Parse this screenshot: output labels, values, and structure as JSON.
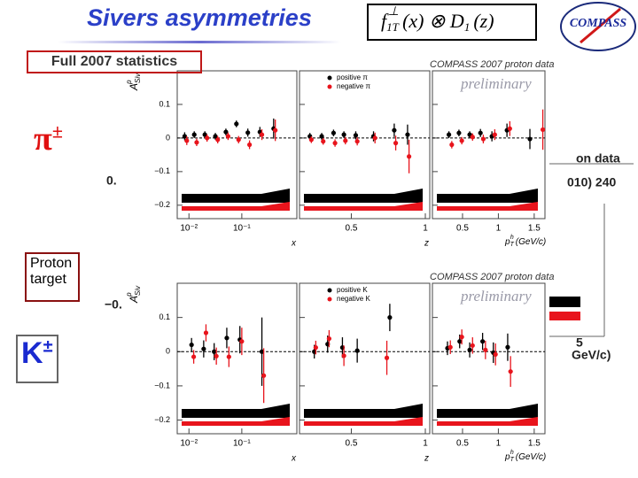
{
  "title": "Sivers asymmetries",
  "formula": {
    "f": "f",
    "sub1": "1T",
    "sup": "⊥",
    "mid": "(x) ⊗ D",
    "sub2": "1",
    "end": "(z)"
  },
  "logo": "COMPASS",
  "labels": {
    "statistics": "Full 2007 statistics",
    "pion": {
      "main": "π",
      "sup": "±"
    },
    "target": "Proton target",
    "kaon": {
      "main": "K",
      "sup": "±"
    }
  },
  "fragments": [
    "0.",
    "−0.",
    "on data",
    "010) 240",
    "5",
    "GeV/c)"
  ],
  "chart_data": [
    {
      "type": "scatter",
      "xscale": "log",
      "ylabel": {
        "main": "A",
        "sub": "Siv",
        "sup": "p"
      },
      "xlabel": "x",
      "xlim": [
        0.006,
        1.1
      ],
      "xticks": [
        {
          "value": 0.01,
          "label": "10⁻²"
        },
        {
          "value": 0.1,
          "label": "10⁻¹"
        }
      ],
      "ylim": [
        -0.24,
        0.2
      ],
      "yticks": [
        {
          "value": 0.1,
          "label": "0.1"
        },
        0,
        {
          "value": -0.1,
          "label": "−0.1"
        },
        {
          "value": -0.2,
          "label": "−0.2"
        }
      ],
      "series": [
        {
          "color": "#000000",
          "x": [
            0.0083,
            0.0126,
            0.02,
            0.0316,
            0.05,
            0.079,
            0.13,
            0.22,
            0.4
          ],
          "values": [
            0.005,
            0.01,
            0.01,
            0.005,
            0.018,
            0.042,
            0.016,
            0.018,
            0.028
          ],
          "errors": [
            0.012,
            0.01,
            0.01,
            0.01,
            0.01,
            0.01,
            0.012,
            0.015,
            0.03
          ]
        },
        {
          "color": "#e8141c",
          "x": [
            0.0091,
            0.014,
            0.022,
            0.035,
            0.055,
            0.087,
            0.14,
            0.24,
            0.43
          ],
          "values": [
            -0.008,
            -0.013,
            0,
            -0.005,
            0.005,
            -0.005,
            -0.02,
            0.01,
            0.023
          ],
          "errors": [
            0.013,
            0.011,
            0.011,
            0.011,
            0.011,
            0.011,
            0.013,
            0.016,
            0.032
          ]
        }
      ]
    },
    {
      "type": "scatter",
      "xlabel": "z",
      "xlim": [
        0.15,
        1.03
      ],
      "xticks": [
        0.5,
        1
      ],
      "series": [
        {
          "name": "positive π",
          "color": "#000000",
          "x": [
            0.22,
            0.3,
            0.38,
            0.45,
            0.53,
            0.65,
            0.79,
            0.88
          ],
          "values": [
            0.005,
            0.005,
            0.015,
            0.01,
            0.008,
            0.005,
            0.023,
            0.01
          ],
          "errors": [
            0.01,
            0.01,
            0.01,
            0.01,
            0.012,
            0.015,
            0.02,
            0.03
          ]
        },
        {
          "name": "negative π",
          "color": "#e8141c",
          "x": [
            0.23,
            0.31,
            0.39,
            0.46,
            0.54,
            0.66,
            0.8,
            0.89
          ],
          "values": [
            -0.005,
            -0.01,
            -0.015,
            -0.008,
            -0.01,
            0,
            -0.015,
            -0.055
          ],
          "errors": [
            0.01,
            0.01,
            0.011,
            0.011,
            0.012,
            0.016,
            0.022,
            0.05
          ]
        }
      ]
    },
    {
      "type": "scatter",
      "xlabel": {
        "main": "p",
        "sub": "T",
        "sup": "h",
        "unit": "(GeV/c)"
      },
      "xlim": [
        0.08,
        1.65
      ],
      "xticks": [
        0.5,
        1,
        1.5
      ],
      "annotations": [
        "COMPASS 2007 proton data",
        "preliminary"
      ],
      "series": [
        {
          "color": "#000000",
          "x": [
            0.31,
            0.45,
            0.6,
            0.75,
            0.91,
            1.12,
            1.44
          ],
          "values": [
            0.01,
            0.015,
            0.01,
            0.015,
            0.005,
            0.023,
            -0.003
          ],
          "errors": [
            0.01,
            0.01,
            0.01,
            0.012,
            0.015,
            0.02,
            0.03
          ]
        },
        {
          "color": "#e8141c",
          "x": [
            0.35,
            0.49,
            0.64,
            0.79,
            0.95,
            1.16,
            1.62
          ],
          "values": [
            -0.02,
            -0.008,
            0.003,
            -0.003,
            0.01,
            0.028,
            0.025
          ],
          "errors": [
            0.011,
            0.011,
            0.011,
            0.013,
            0.016,
            0.022,
            0.06
          ]
        }
      ]
    },
    {
      "type": "scatter",
      "xscale": "log",
      "ylabel": {
        "main": "A",
        "sub": "Siv",
        "sup": "p"
      },
      "xlabel": "x",
      "xlim": [
        0.006,
        1.1
      ],
      "xticks": [
        {
          "value": 0.01,
          "label": "10⁻²"
        },
        {
          "value": 0.1,
          "label": "10⁻¹"
        }
      ],
      "ylim": [
        -0.24,
        0.2
      ],
      "yticks": [
        {
          "value": 0.1,
          "label": "0.1"
        },
        0,
        {
          "value": -0.1,
          "label": "−0.1"
        },
        {
          "value": -0.2,
          "label": "−0.2"
        }
      ],
      "series": [
        {
          "color": "#000000",
          "x": [
            0.0112,
            0.019,
            0.03,
            0.052,
            0.092,
            0.24
          ],
          "values": [
            0.02,
            0.008,
            0,
            0.04,
            0.035,
            0
          ],
          "errors": [
            0.02,
            0.025,
            0.025,
            0.03,
            0.04,
            0.1
          ]
        },
        {
          "color": "#e8141c",
          "x": [
            0.0123,
            0.021,
            0.033,
            0.057,
            0.1,
            0.26
          ],
          "values": [
            -0.015,
            0.055,
            -0.013,
            -0.015,
            0.03,
            -0.07
          ],
          "errors": [
            0.02,
            0.025,
            0.025,
            0.03,
            0.04,
            0.08
          ]
        }
      ]
    },
    {
      "type": "scatter",
      "xlabel": "z",
      "xlim": [
        0.15,
        1.03
      ],
      "xticks": [
        0.5,
        1
      ],
      "series": [
        {
          "name": "positive K",
          "color": "#000000",
          "x": [
            0.25,
            0.34,
            0.44,
            0.54,
            0.76
          ],
          "values": [
            0,
            0.022,
            0.012,
            0.003,
            0.1
          ],
          "errors": [
            0.02,
            0.025,
            0.03,
            0.035,
            0.04
          ]
        },
        {
          "name": "negative K",
          "color": "#e8141c",
          "x": [
            0.26,
            0.35,
            0.45,
            0.74
          ],
          "values": [
            0.012,
            0.038,
            -0.012,
            -0.018
          ],
          "errors": [
            0.02,
            0.025,
            0.03,
            0.05
          ]
        }
      ]
    },
    {
      "type": "scatter",
      "xlabel": {
        "main": "p",
        "sub": "T",
        "sup": "h",
        "unit": "(GeV/c)"
      },
      "xlim": [
        0.08,
        1.65
      ],
      "xticks": [
        0.5,
        1,
        1.5
      ],
      "annotations": [
        "COMPASS 2007 proton data",
        "preliminary"
      ],
      "series": [
        {
          "color": "#000000",
          "x": [
            0.29,
            0.46,
            0.6,
            0.78,
            0.93,
            1.13
          ],
          "values": [
            0.01,
            0.03,
            0.005,
            0.03,
            -0.003,
            0.013
          ],
          "errors": [
            0.02,
            0.02,
            0.022,
            0.025,
            0.03,
            0.04
          ]
        },
        {
          "color": "#e8141c",
          "x": [
            0.33,
            0.49,
            0.64,
            0.82,
            0.96,
            1.17
          ],
          "values": [
            0.013,
            0.043,
            0.018,
            0.005,
            -0.008,
            -0.058
          ],
          "errors": [
            0.02,
            0.022,
            0.024,
            0.027,
            0.032,
            0.045
          ]
        }
      ]
    }
  ]
}
